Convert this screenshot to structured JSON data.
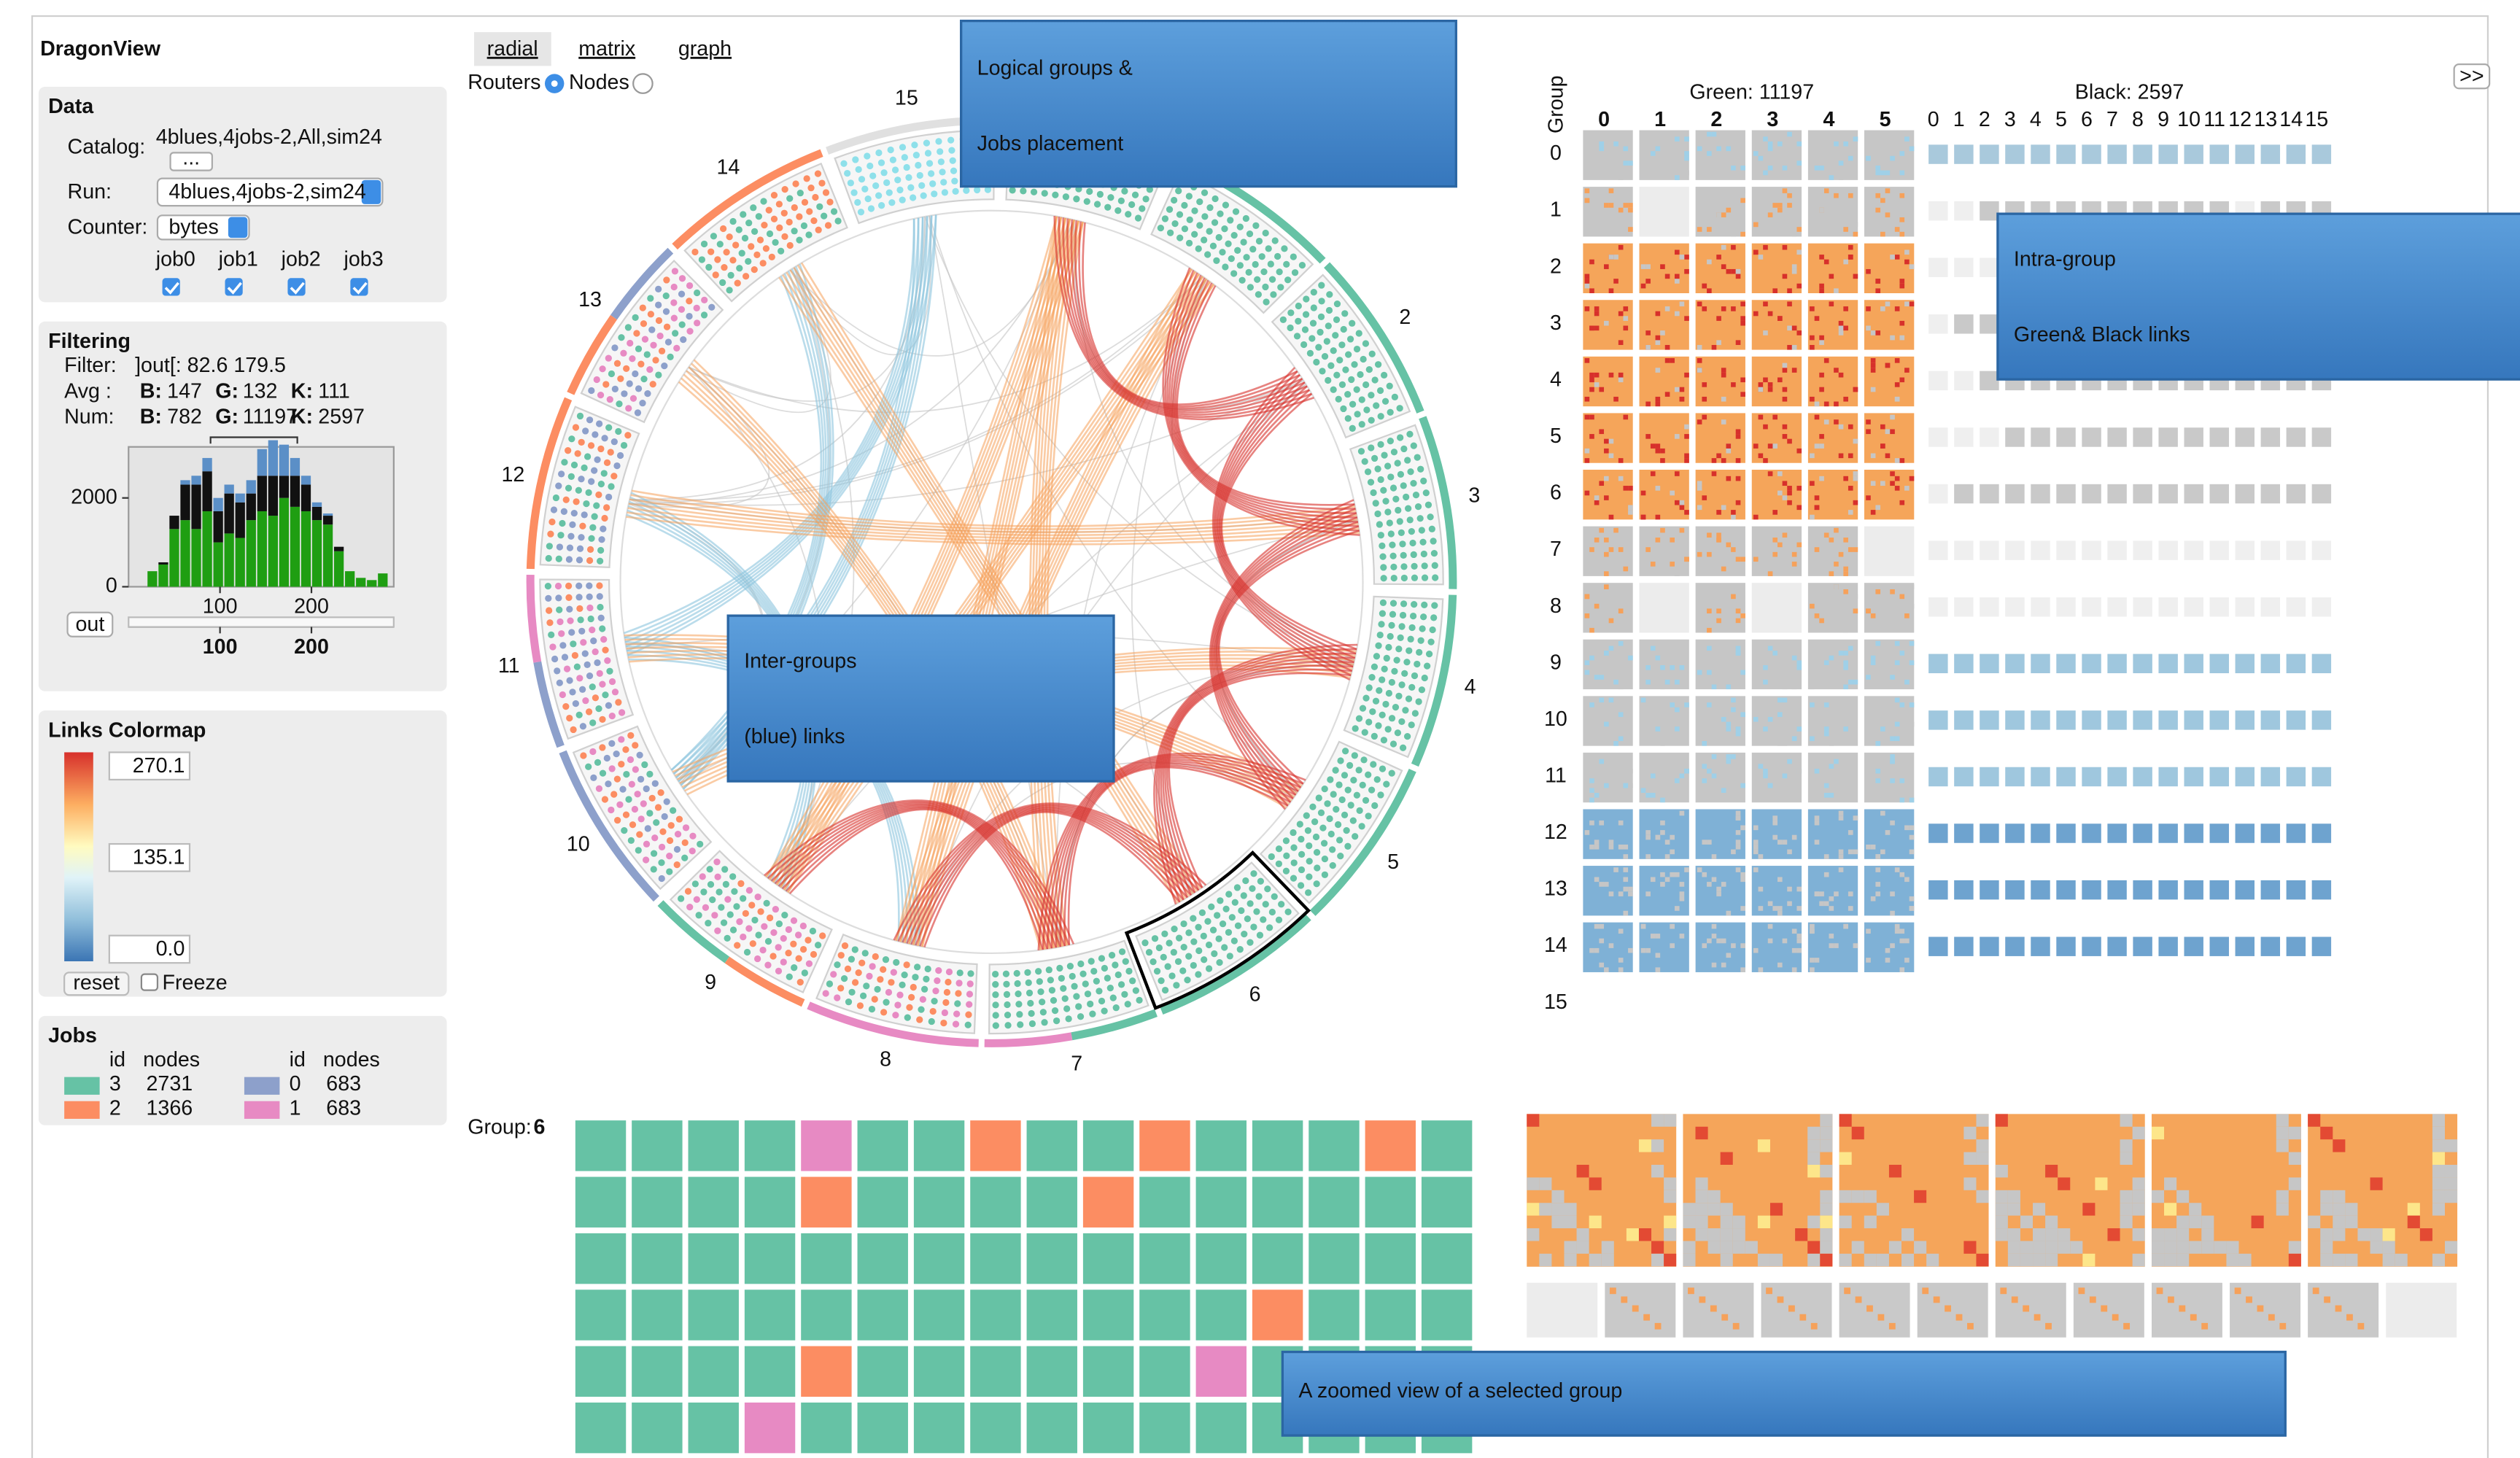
{
  "app": {
    "title": "DragonView",
    "expand": ">>"
  },
  "data_panel": {
    "heading": "Data",
    "catalog_label": "Catalog:",
    "catalog": "4blues,4jobs-2,All,sim24",
    "browse": "...",
    "run_label": "Run:",
    "run": "4blues,4jobs-2,sim24",
    "counter_label": "Counter:",
    "counter": "bytes",
    "jobs": [
      "job0",
      "job1",
      "job2",
      "job3"
    ]
  },
  "filtering": {
    "heading": "Filtering",
    "filter_label": "Filter:",
    "filter": "]out[: 82.6 179.5",
    "avg_label": "Avg :",
    "avg": [
      {
        "key": "B:",
        "value": 147,
        "color": "#2f6bd6"
      },
      {
        "key": "G:",
        "value": 132,
        "color": "#2ca02c"
      },
      {
        "key": "K:",
        "value": 111,
        "color": "#000000"
      }
    ],
    "num_label": "Num:",
    "num": [
      {
        "key": "B:",
        "value": 782,
        "color": "#2f6bd6"
      },
      {
        "key": "G:",
        "value": 11197,
        "color": "#2ca02c"
      },
      {
        "key": "K:",
        "value": 2597,
        "color": "#000000"
      }
    ],
    "histogram": {
      "type": "bar",
      "bins": [
        20,
        32,
        44,
        56,
        68,
        80,
        92,
        104,
        116,
        128,
        140,
        152,
        164,
        176,
        188,
        200,
        212,
        224,
        236,
        248,
        260,
        272,
        284
      ],
      "series": [
        {
          "color": "#1f9e12",
          "values": [
            350,
            500,
            1300,
            1500,
            1300,
            1700,
            1000,
            1200,
            1100,
            1500,
            1700,
            1600,
            2000,
            1800,
            1700,
            1500,
            1400,
            800,
            350,
            200,
            150,
            300
          ]
        },
        {
          "color": "#111111",
          "values": [
            0,
            50,
            300,
            800,
            1000,
            900,
            700,
            900,
            800,
            600,
            800,
            900,
            500,
            700,
            600,
            300,
            200,
            100,
            0,
            0,
            0,
            0
          ]
        },
        {
          "color": "#5b8fc7",
          "values": [
            0,
            0,
            0,
            100,
            200,
            300,
            300,
            200,
            200,
            300,
            600,
            800,
            700,
            400,
            200,
            100,
            50,
            0,
            0,
            0,
            0,
            0
          ]
        }
      ],
      "xlim": [
        0,
        290
      ],
      "ylim": [
        0,
        3150
      ],
      "xticks": [
        100,
        200
      ],
      "yticks": [
        0,
        2000
      ]
    },
    "out_button": "out",
    "brush_ticks": [
      100,
      200
    ]
  },
  "colormap": {
    "heading": "Links Colormap",
    "max": "270.1",
    "mid": "135.1",
    "min": "0.0",
    "reset": "reset",
    "freeze": "Freeze"
  },
  "jobs": {
    "heading": "Jobs",
    "columns": [
      "id",
      "nodes"
    ],
    "rows": [
      {
        "id": 3,
        "nodes": 2731,
        "color": "#66c2a5"
      },
      {
        "id": 2,
        "nodes": 1366,
        "color": "#fc8d62"
      },
      {
        "id": 0,
        "nodes": 683,
        "color": "#8da0cb"
      },
      {
        "id": 1,
        "nodes": 683,
        "color": "#e78ac3"
      }
    ]
  },
  "views": {
    "tabs": [
      "radial",
      "matrix",
      "graph"
    ],
    "modes": [
      "Routers",
      "Nodes"
    ]
  },
  "radial": {
    "groups": [
      2,
      3,
      4,
      5,
      6,
      7,
      8,
      9,
      10,
      11,
      12,
      13,
      14,
      15
    ],
    "selected": 6
  },
  "matrix": {
    "axis_label": "Group",
    "green": "Green: 11197",
    "black": "Black: 2597",
    "green_columns": [
      0,
      1,
      2,
      3,
      4,
      5
    ],
    "black_columns": [
      0,
      1,
      2,
      3,
      4,
      5,
      6,
      7,
      8,
      9,
      10,
      11,
      12,
      13,
      14,
      15
    ],
    "rows": [
      0,
      1,
      2,
      3,
      4,
      5,
      6,
      7,
      8,
      9,
      10,
      11,
      12,
      13,
      14,
      15
    ]
  },
  "zoom": {
    "label": "Group:",
    "group": 6
  },
  "callouts": {
    "logical": [
      "Logical groups &",
      "Jobs placement"
    ],
    "intra": [
      "Intra-group",
      "Green& Black links"
    ],
    "inter": [
      "Inter-groups",
      "(blue) links"
    ],
    "zoom": "A zoomed view of a selected group"
  }
}
